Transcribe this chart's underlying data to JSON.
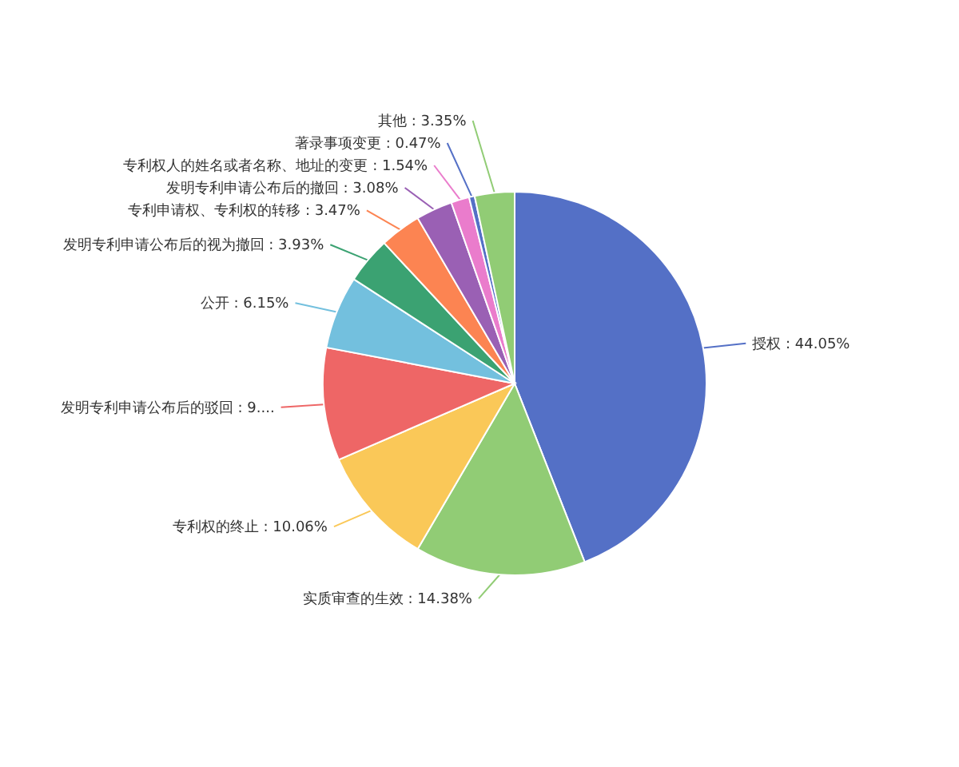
{
  "chart_data": {
    "type": "pie",
    "categories": [
      "授权",
      "实质审查的生效",
      "专利权的终止",
      "发明专利申请公布后的驳回",
      "公开",
      "发明专利申请公布后的视为撤回",
      "专利申请权、专利权的转移",
      "发明专利申请公布后的撤回",
      "专利权人的姓名或者名称、地址的变更",
      "著录事项变更",
      "其他"
    ],
    "values": [
      44.05,
      14.38,
      10.06,
      9.52,
      6.15,
      3.93,
      3.47,
      3.08,
      1.54,
      0.47,
      3.35
    ],
    "value_labels": [
      "44.05%",
      "14.38%",
      "10.06%",
      "9....",
      "6.15%",
      "3.93%",
      "3.47%",
      "3.08%",
      "1.54%",
      "0.47%",
      "3.35%"
    ],
    "colors": [
      "#5470c6",
      "#91cc75",
      "#fac858",
      "#ee6666",
      "#73c0de",
      "#3ba272",
      "#fc8452",
      "#9a60b4",
      "#ea7ccc",
      "#5470c6",
      "#91cc75"
    ]
  }
}
